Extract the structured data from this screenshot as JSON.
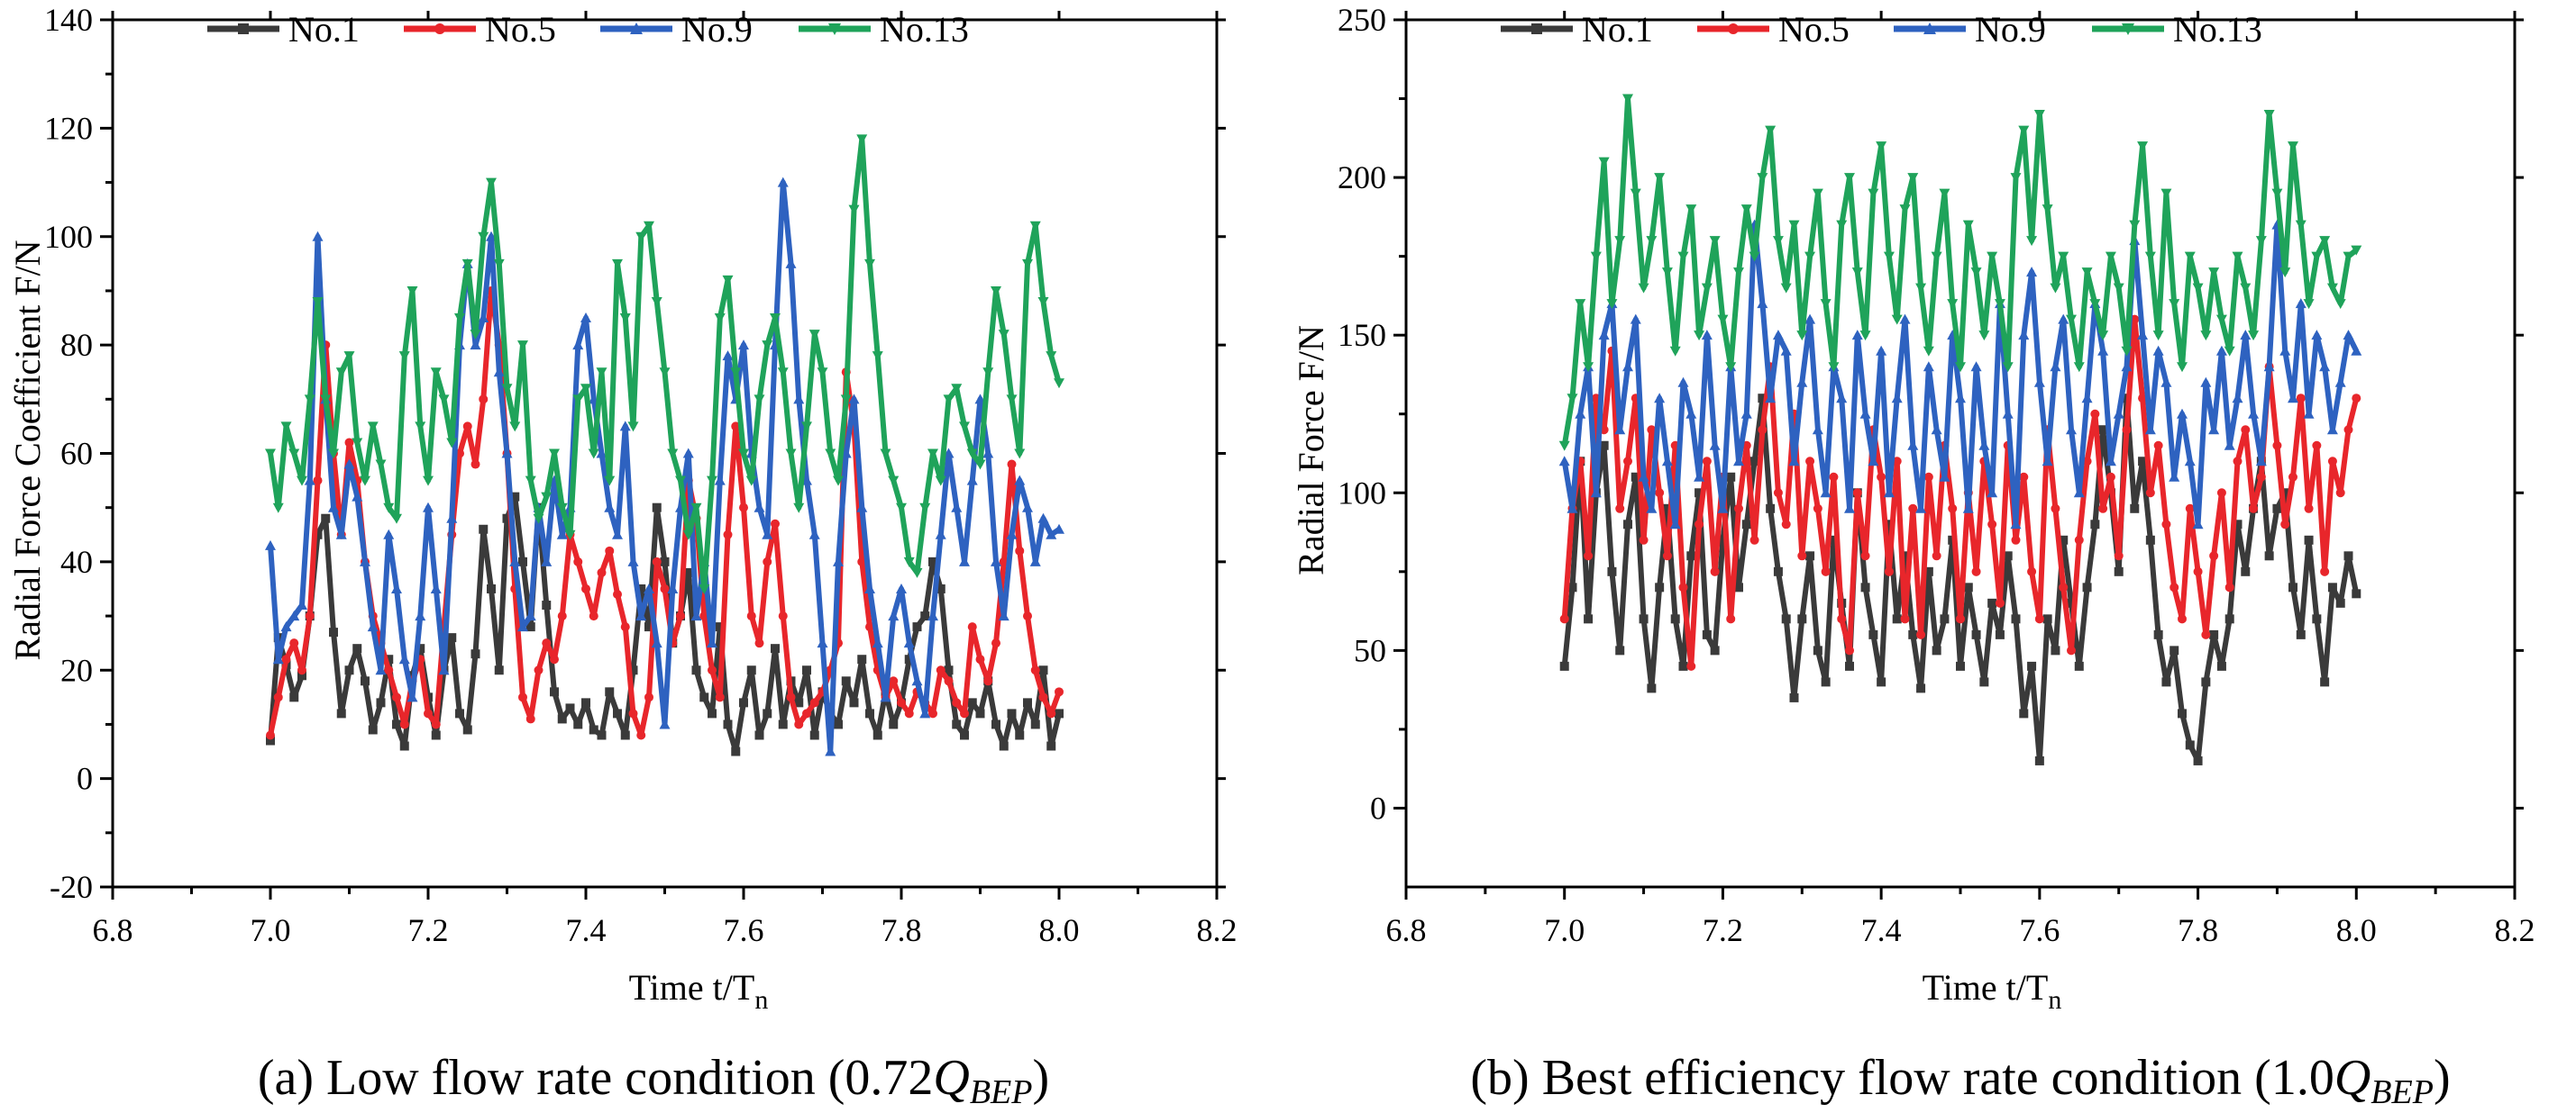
{
  "colors": {
    "No.1": "#3a3a3a",
    "No.5": "#e8262b",
    "No.9": "#2e62c0",
    "No.13": "#1fa35a"
  },
  "chart_data": [
    {
      "type": "line",
      "id": "a",
      "xlabel": "Time t/T",
      "xlabel_sub": "n",
      "ylabel": "Radial Force Coefficient F/N",
      "xlim": [
        6.8,
        8.2
      ],
      "ylim": [
        -20,
        140
      ],
      "xticks": [
        "6.8",
        "7.0",
        "7.2",
        "7.4",
        "7.6",
        "7.8",
        "8.0",
        "8.2"
      ],
      "yticks": [
        "-20",
        "0",
        "20",
        "40",
        "60",
        "80",
        "100",
        "120",
        "140"
      ],
      "caption_main": "(a) Low flow rate condition (0.72",
      "caption_q": "Q",
      "caption_sub": "BEP",
      "caption_end": ")",
      "series": [
        {
          "name": "No.1",
          "x0": 7.0,
          "dx": 0.01,
          "values": [
            7,
            26,
            21,
            15,
            19,
            30,
            45,
            48,
            27,
            12,
            20,
            24,
            18,
            9,
            14,
            22,
            10,
            6,
            19,
            24,
            15,
            8,
            20,
            26,
            12,
            9,
            23,
            46,
            35,
            20,
            48,
            52,
            40,
            28,
            50,
            32,
            16,
            11,
            13,
            10,
            14,
            9,
            8,
            16,
            12,
            8,
            20,
            35,
            28,
            50,
            40,
            25,
            30,
            38,
            20,
            15,
            12,
            28,
            10,
            5,
            14,
            20,
            8,
            12,
            24,
            10,
            18,
            14,
            20,
            8,
            16,
            12,
            10,
            18,
            14,
            22,
            12,
            8,
            16,
            10,
            14,
            22,
            28,
            30,
            40,
            35,
            20,
            10,
            8,
            14,
            12,
            18,
            10,
            6,
            12,
            8,
            14,
            10,
            20,
            6,
            12
          ]
        },
        {
          "name": "No.5",
          "x0": 7.0,
          "dx": 0.01,
          "values": [
            8,
            15,
            22,
            25,
            20,
            30,
            55,
            80,
            60,
            45,
            62,
            55,
            40,
            30,
            25,
            20,
            15,
            10,
            18,
            22,
            12,
            10,
            28,
            45,
            60,
            65,
            58,
            70,
            90,
            80,
            60,
            35,
            15,
            11,
            20,
            25,
            22,
            30,
            45,
            40,
            35,
            30,
            38,
            42,
            34,
            28,
            12,
            8,
            15,
            40,
            35,
            25,
            30,
            55,
            48,
            30,
            20,
            15,
            45,
            65,
            50,
            30,
            25,
            40,
            47,
            30,
            15,
            10,
            12,
            14,
            16,
            20,
            25,
            75,
            65,
            40,
            28,
            20,
            15,
            18,
            14,
            12,
            16,
            14,
            12,
            20,
            18,
            14,
            12,
            28,
            22,
            18,
            25,
            40,
            58,
            42,
            30,
            20,
            15,
            12,
            16
          ]
        },
        {
          "name": "No.9",
          "x0": 7.0,
          "dx": 0.01,
          "values": [
            43,
            22,
            28,
            30,
            32,
            55,
            100,
            70,
            50,
            45,
            58,
            52,
            40,
            28,
            20,
            45,
            35,
            22,
            15,
            30,
            50,
            35,
            20,
            48,
            80,
            95,
            80,
            85,
            100,
            75,
            60,
            40,
            28,
            30,
            50,
            40,
            55,
            45,
            50,
            80,
            85,
            70,
            60,
            50,
            45,
            65,
            40,
            30,
            35,
            25,
            10,
            35,
            50,
            60,
            30,
            40,
            25,
            55,
            78,
            70,
            80,
            60,
            50,
            45,
            80,
            110,
            95,
            70,
            55,
            45,
            25,
            5,
            40,
            60,
            70,
            50,
            35,
            25,
            15,
            30,
            35,
            25,
            18,
            12,
            30,
            45,
            60,
            50,
            40,
            55,
            70,
            60,
            40,
            30,
            45,
            55,
            50,
            40,
            48,
            45,
            46
          ]
        },
        {
          "name": "No.13",
          "x0": 7.0,
          "dx": 0.01,
          "values": [
            60,
            50,
            65,
            60,
            55,
            70,
            88,
            70,
            60,
            75,
            78,
            62,
            55,
            65,
            58,
            50,
            48,
            78,
            90,
            65,
            55,
            75,
            70,
            62,
            85,
            95,
            82,
            100,
            110,
            95,
            72,
            65,
            80,
            55,
            48,
            52,
            60,
            50,
            45,
            70,
            72,
            60,
            75,
            55,
            95,
            85,
            65,
            100,
            102,
            88,
            75,
            60,
            55,
            45,
            50,
            35,
            55,
            85,
            92,
            75,
            60,
            55,
            70,
            80,
            85,
            75,
            60,
            50,
            65,
            82,
            75,
            60,
            55,
            70,
            105,
            118,
            95,
            78,
            60,
            55,
            50,
            40,
            38,
            50,
            60,
            55,
            70,
            72,
            65,
            60,
            58,
            75,
            90,
            82,
            70,
            60,
            95,
            102,
            88,
            78,
            73
          ]
        }
      ]
    },
    {
      "type": "line",
      "id": "b",
      "xlabel": "Time t/T",
      "xlabel_sub": "n",
      "ylabel": "Radial Force F/N",
      "xlim": [
        6.8,
        8.2
      ],
      "ylim": [
        -25,
        250
      ],
      "xticks": [
        "6.8",
        "7.0",
        "7.2",
        "7.4",
        "7.6",
        "7.8",
        "8.0",
        "8.2"
      ],
      "yticks": [
        "0",
        "50",
        "100",
        "150",
        "200",
        "250"
      ],
      "caption_main": "(b) Best efficiency flow rate condition (1.0",
      "caption_q": "Q",
      "caption_sub": "BEP",
      "caption_end": ")",
      "series": [
        {
          "name": "No.1",
          "x0": 7.0,
          "dx": 0.01,
          "values": [
            45,
            70,
            110,
            60,
            100,
            115,
            75,
            50,
            90,
            105,
            60,
            38,
            70,
            95,
            60,
            45,
            80,
            100,
            55,
            50,
            85,
            105,
            70,
            90,
            110,
            130,
            95,
            75,
            60,
            35,
            60,
            80,
            50,
            40,
            85,
            65,
            45,
            100,
            70,
            55,
            40,
            90,
            60,
            80,
            55,
            38,
            75,
            50,
            60,
            85,
            45,
            70,
            55,
            40,
            65,
            55,
            80,
            60,
            30,
            45,
            15,
            60,
            50,
            85,
            65,
            45,
            70,
            90,
            120,
            100,
            75,
            130,
            95,
            110,
            85,
            55,
            40,
            50,
            30,
            20,
            15,
            40,
            55,
            45,
            60,
            90,
            75,
            95,
            110,
            80,
            95,
            100,
            70,
            55,
            85,
            60,
            40,
            70,
            65,
            80,
            68
          ]
        },
        {
          "name": "No.5",
          "x0": 7.0,
          "dx": 0.01,
          "values": [
            60,
            95,
            110,
            80,
            130,
            120,
            145,
            95,
            110,
            130,
            85,
            120,
            100,
            80,
            115,
            70,
            45,
            90,
            110,
            75,
            105,
            60,
            95,
            115,
            85,
            120,
            140,
            100,
            90,
            125,
            80,
            110,
            95,
            75,
            105,
            60,
            50,
            100,
            80,
            120,
            105,
            75,
            110,
            60,
            95,
            55,
            105,
            80,
            115,
            95,
            60,
            100,
            75,
            110,
            90,
            65,
            115,
            85,
            105,
            75,
            60,
            120,
            95,
            70,
            50,
            85,
            110,
            125,
            95,
            105,
            80,
            120,
            155,
            130,
            100,
            115,
            90,
            70,
            60,
            95,
            75,
            55,
            80,
            100,
            70,
            110,
            120,
            95,
            105,
            140,
            115,
            90,
            105,
            130,
            95,
            115,
            75,
            110,
            100,
            120,
            130
          ]
        },
        {
          "name": "No.9",
          "x0": 7.0,
          "dx": 0.01,
          "values": [
            110,
            95,
            125,
            140,
            100,
            150,
            160,
            120,
            140,
            155,
            105,
            95,
            130,
            110,
            90,
            135,
            125,
            105,
            150,
            115,
            95,
            140,
            110,
            125,
            185,
            160,
            130,
            150,
            145,
            110,
            135,
            155,
            120,
            100,
            140,
            130,
            95,
            150,
            125,
            110,
            145,
            100,
            130,
            155,
            115,
            95,
            140,
            120,
            105,
            150,
            130,
            95,
            140,
            115,
            100,
            160,
            125,
            90,
            150,
            170,
            135,
            110,
            140,
            155,
            120,
            100,
            130,
            160,
            145,
            110,
            125,
            140,
            180,
            150,
            120,
            145,
            135,
            105,
            125,
            110,
            90,
            135,
            120,
            145,
            115,
            130,
            150,
            125,
            110,
            140,
            185,
            145,
            130,
            160,
            125,
            150,
            140,
            120,
            135,
            150,
            145
          ]
        },
        {
          "name": "No.13",
          "x0": 7.0,
          "dx": 0.01,
          "values": [
            115,
            130,
            160,
            140,
            175,
            205,
            160,
            180,
            225,
            195,
            165,
            180,
            200,
            170,
            145,
            175,
            190,
            150,
            165,
            180,
            155,
            140,
            170,
            190,
            175,
            200,
            215,
            180,
            165,
            185,
            150,
            175,
            195,
            160,
            140,
            185,
            200,
            170,
            150,
            195,
            210,
            175,
            155,
            190,
            200,
            165,
            145,
            175,
            195,
            160,
            140,
            185,
            170,
            150,
            175,
            160,
            140,
            200,
            215,
            180,
            220,
            190,
            165,
            175,
            155,
            140,
            170,
            160,
            150,
            175,
            165,
            145,
            185,
            210,
            175,
            150,
            195,
            160,
            140,
            175,
            165,
            150,
            170,
            155,
            145,
            175,
            165,
            150,
            180,
            220,
            195,
            170,
            210,
            185,
            160,
            175,
            180,
            165,
            160,
            175,
            177
          ]
        }
      ]
    }
  ]
}
